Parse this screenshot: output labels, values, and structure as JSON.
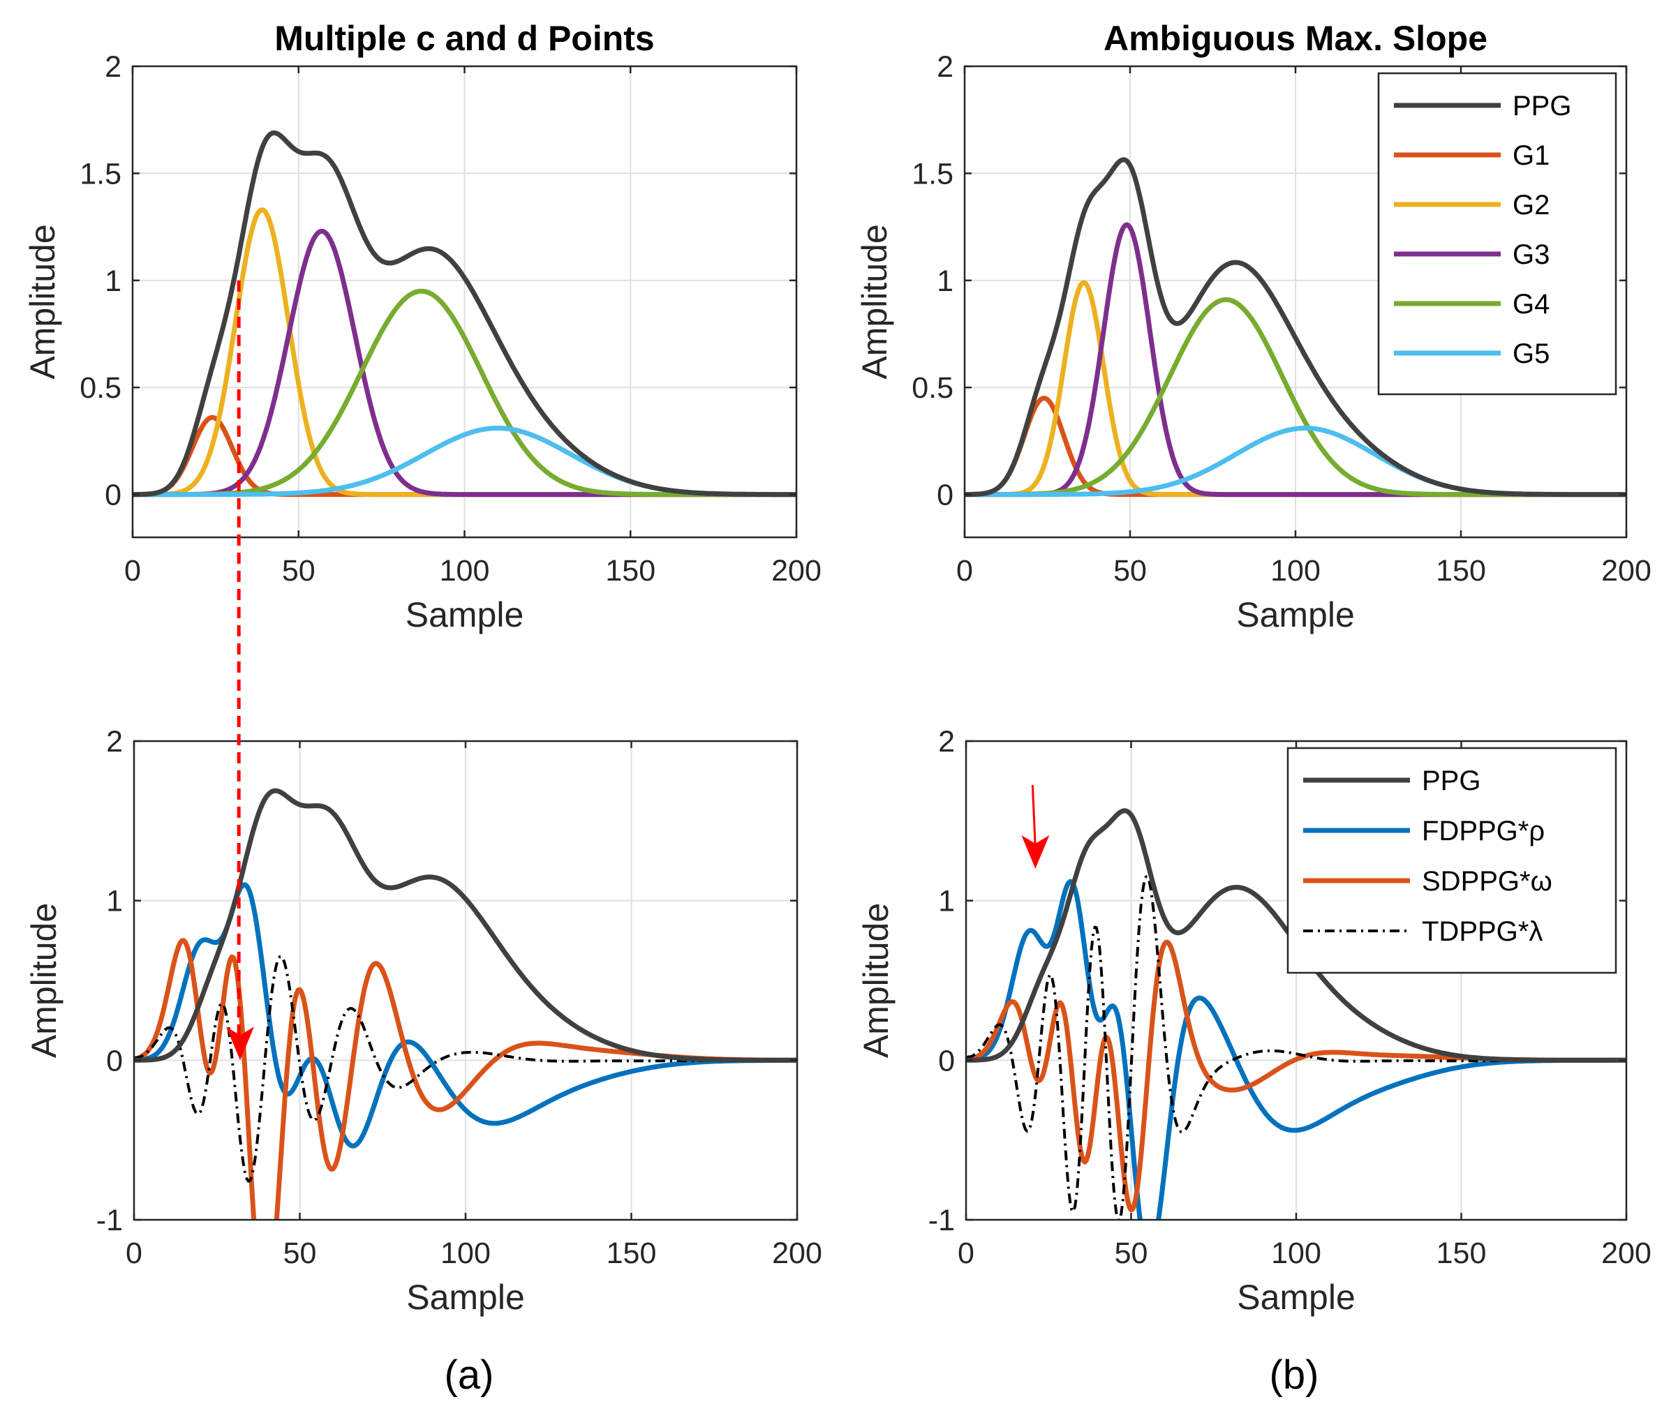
{
  "chart_data": [
    {
      "id": "top-left",
      "type": "line",
      "title": "Multiple c and d Points",
      "xlabel": "Sample",
      "ylabel": "Amplitude",
      "xlim": [
        0,
        200
      ],
      "ylim": [
        -0.2,
        2
      ],
      "xticks": [
        0,
        50,
        100,
        150,
        200
      ],
      "yticks": [
        0,
        0.5,
        1,
        1.5,
        2
      ],
      "ytick_labels": [
        "0",
        "0.5",
        "1",
        "1.5",
        "2"
      ],
      "grid": true,
      "legend": null,
      "gaussians": [
        {
          "name": "G1",
          "amp": 0.36,
          "center": 24,
          "width": 6
        },
        {
          "name": "G2",
          "amp": 1.33,
          "center": 39,
          "width": 8
        },
        {
          "name": "G3",
          "amp": 1.23,
          "center": 57,
          "width": 10
        },
        {
          "name": "G4",
          "amp": 0.95,
          "center": 87,
          "width": 18
        },
        {
          "name": "G5",
          "amp": 0.31,
          "center": 110,
          "width": 22
        }
      ],
      "series": [
        {
          "name": "PPG",
          "kind": "sum",
          "color": "#404040",
          "style": "solid"
        },
        {
          "name": "G1",
          "kind": "g",
          "index": 0,
          "color": "#D95319",
          "style": "solid"
        },
        {
          "name": "G2",
          "kind": "g",
          "index": 1,
          "color": "#EDB120",
          "style": "solid"
        },
        {
          "name": "G3",
          "kind": "g",
          "index": 2,
          "color": "#7E2F8E",
          "style": "solid"
        },
        {
          "name": "G4",
          "kind": "g",
          "index": 3,
          "color": "#77AC30",
          "style": "solid"
        },
        {
          "name": "G5",
          "kind": "g",
          "index": 4,
          "color": "#4DBEEE",
          "style": "solid"
        }
      ],
      "annotation": {
        "type": "dashed-connector",
        "x": 32,
        "y_start": 1.0,
        "color": "#FF0000"
      }
    },
    {
      "id": "top-right",
      "type": "line",
      "title": "Ambiguous Max. Slope",
      "xlabel": "Sample",
      "ylabel": "Amplitude",
      "xlim": [
        0,
        200
      ],
      "ylim": [
        -0.2,
        2
      ],
      "xticks": [
        0,
        50,
        100,
        150,
        200
      ],
      "yticks": [
        0,
        0.5,
        1,
        1.5,
        2
      ],
      "ytick_labels": [
        "0",
        "0.5",
        "1",
        "1.5",
        "2"
      ],
      "grid": true,
      "legend": "top-right",
      "gaussians": [
        {
          "name": "G1",
          "amp": 0.45,
          "center": 24,
          "width": 6
        },
        {
          "name": "G2",
          "amp": 0.99,
          "center": 36,
          "width": 6
        },
        {
          "name": "G3",
          "amp": 1.26,
          "center": 49,
          "width": 7
        },
        {
          "name": "G4",
          "amp": 0.91,
          "center": 79,
          "width": 17
        },
        {
          "name": "G5",
          "amp": 0.31,
          "center": 103,
          "width": 21
        }
      ],
      "series": [
        {
          "name": "PPG",
          "kind": "sum",
          "color": "#404040",
          "style": "solid"
        },
        {
          "name": "G1",
          "kind": "g",
          "index": 0,
          "color": "#D95319",
          "style": "solid"
        },
        {
          "name": "G2",
          "kind": "g",
          "index": 1,
          "color": "#EDB120",
          "style": "solid"
        },
        {
          "name": "G3",
          "kind": "g",
          "index": 2,
          "color": "#7E2F8E",
          "style": "solid"
        },
        {
          "name": "G4",
          "kind": "g",
          "index": 3,
          "color": "#77AC30",
          "style": "solid"
        },
        {
          "name": "G5",
          "kind": "g",
          "index": 4,
          "color": "#4DBEEE",
          "style": "solid"
        }
      ]
    },
    {
      "id": "bottom-left",
      "type": "line",
      "title": "",
      "xlabel": "Sample",
      "ylabel": "Amplitude",
      "xlim": [
        0,
        200
      ],
      "ylim": [
        -1,
        2
      ],
      "xticks": [
        0,
        50,
        100,
        150,
        200
      ],
      "yticks": [
        -1,
        0,
        1,
        2
      ],
      "ytick_labels": [
        "-1",
        "0",
        "1",
        "2"
      ],
      "grid": true,
      "legend": null,
      "uses_gaussians_of": "top-left",
      "series": [
        {
          "name": "PPG",
          "kind": "sum",
          "color": "#404040",
          "style": "solid"
        },
        {
          "name": "FDPPG*ρ",
          "kind": "d1",
          "target_max": 1.1,
          "color": "#0072BD",
          "style": "solid"
        },
        {
          "name": "SDPPG*ω",
          "kind": "d2",
          "target_max": 0.75,
          "color": "#D95319",
          "style": "solid"
        },
        {
          "name": "TDPPG*λ",
          "kind": "d3",
          "target_max": 0.65,
          "color": "#000000",
          "style": "dashdot"
        }
      ],
      "annotation": {
        "type": "arrow-down",
        "x": 32,
        "y_tip": 0.0,
        "color": "#FF0000"
      }
    },
    {
      "id": "bottom-right",
      "type": "line",
      "title": "",
      "xlabel": "Sample",
      "ylabel": "Amplitude",
      "xlim": [
        0,
        200
      ],
      "ylim": [
        -1,
        2
      ],
      "xticks": [
        0,
        50,
        100,
        150,
        200
      ],
      "yticks": [
        -1,
        0,
        1,
        2
      ],
      "ytick_labels": [
        "-1",
        "0",
        "1",
        "2"
      ],
      "grid": true,
      "legend": "top-right",
      "uses_gaussians_of": "top-right",
      "series": [
        {
          "name": "PPG",
          "kind": "sum",
          "color": "#404040",
          "style": "solid"
        },
        {
          "name": "FDPPG*ρ",
          "kind": "d1",
          "target_max": 1.12,
          "color": "#0072BD",
          "style": "solid"
        },
        {
          "name": "SDPPG*ω",
          "kind": "d2",
          "target_max": 0.74,
          "color": "#D95319",
          "style": "solid"
        },
        {
          "name": "TDPPG*λ",
          "kind": "d3",
          "target_max": 1.15,
          "color": "#000000",
          "style": "dashdot"
        }
      ],
      "annotation": {
        "type": "arrow-down",
        "x": 21,
        "y_tip": 1.2,
        "color": "#FF0000"
      }
    }
  ],
  "captions": {
    "left": "(a)",
    "right": "(b)"
  }
}
